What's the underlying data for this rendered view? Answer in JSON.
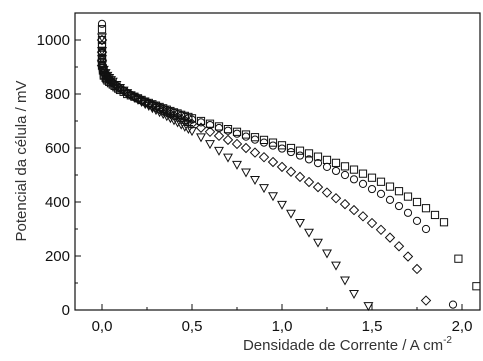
{
  "chart_data": {
    "type": "scatter",
    "title": "",
    "xlabel": "Densidade de Corrente / A cm",
    "xlabel_superscript": "-2",
    "ylabel": "Potencial da célula / mV",
    "xlim": [
      -0.15,
      2.1
    ],
    "ylim": [
      0,
      1100
    ],
    "x_ticks": [
      0.0,
      0.5,
      1.0,
      1.5,
      2.0
    ],
    "x_tick_labels": [
      "0,0",
      "0,5",
      "1,0",
      "1,5",
      "2,0"
    ],
    "y_ticks": [
      0,
      200,
      400,
      600,
      800,
      1000
    ],
    "y_tick_labels": [
      "0",
      "200",
      "400",
      "600",
      "800",
      "1000"
    ],
    "grid": false,
    "legend": "none",
    "marker_color": "#111111",
    "series": [
      {
        "marker": "square",
        "x": [
          0,
          0,
          0,
          0,
          0,
          0,
          0,
          0,
          0.005,
          0.005,
          0.01,
          0.01,
          0.01,
          0.02,
          0.025,
          0.03,
          0.04,
          0.05,
          0.06,
          0.07,
          0.08,
          0.09,
          0.1,
          0.12,
          0.14,
          0.16,
          0.18,
          0.2,
          0.22,
          0.24,
          0.26,
          0.28,
          0.3,
          0.32,
          0.34,
          0.36,
          0.38,
          0.4,
          0.42,
          0.44,
          0.46,
          0.48,
          0.5,
          0.55,
          0.6,
          0.65,
          0.7,
          0.75,
          0.8,
          0.85,
          0.9,
          0.95,
          1.0,
          1.05,
          1.1,
          1.15,
          1.2,
          1.25,
          1.3,
          1.35,
          1.4,
          1.45,
          1.5,
          1.55,
          1.6,
          1.65,
          1.7,
          1.75,
          1.8,
          1.85,
          1.9,
          1.98,
          2.08
        ],
        "y": [
          1040,
          1000,
          980,
          960,
          945,
          930,
          915,
          905,
          895,
          887,
          880,
          872,
          868,
          860,
          855,
          850,
          845,
          840,
          835,
          830,
          825,
          820,
          815,
          808,
          800,
          795,
          790,
          784,
          778,
          772,
          767,
          762,
          757,
          752,
          747,
          742,
          737,
          732,
          728,
          723,
          719,
          715,
          710,
          700,
          690,
          680,
          670,
          660,
          650,
          640,
          630,
          620,
          610,
          600,
          590,
          580,
          568,
          556,
          545,
          532,
          520,
          505,
          490,
          475,
          457,
          440,
          420,
          400,
          377,
          352,
          325,
          190,
          88
        ]
      },
      {
        "marker": "circle",
        "x": [
          0,
          0,
          0,
          0,
          0,
          0,
          0.005,
          0.01,
          0.02,
          0.03,
          0.04,
          0.05,
          0.06,
          0.08,
          0.1,
          0.12,
          0.14,
          0.16,
          0.18,
          0.2,
          0.22,
          0.24,
          0.26,
          0.28,
          0.3,
          0.32,
          0.34,
          0.36,
          0.38,
          0.4,
          0.42,
          0.44,
          0.46,
          0.48,
          0.5,
          0.55,
          0.6,
          0.65,
          0.7,
          0.75,
          0.8,
          0.85,
          0.9,
          0.95,
          1.0,
          1.05,
          1.1,
          1.15,
          1.2,
          1.25,
          1.3,
          1.35,
          1.4,
          1.45,
          1.5,
          1.55,
          1.6,
          1.65,
          1.7,
          1.75,
          1.8,
          1.95
        ],
        "y": [
          1060,
          980,
          950,
          930,
          910,
          898,
          888,
          880,
          868,
          860,
          853,
          846,
          840,
          830,
          820,
          812,
          804,
          797,
          790,
          784,
          778,
          772,
          766,
          761,
          756,
          750,
          745,
          740,
          735,
          730,
          725,
          720,
          715,
          710,
          705,
          695,
          685,
          674,
          664,
          653,
          642,
          631,
          620,
          609,
          598,
          585,
          572,
          558,
          544,
          530,
          515,
          500,
          484,
          467,
          448,
          430,
          408,
          385,
          360,
          330,
          300,
          20
        ]
      },
      {
        "marker": "diamond",
        "x": [
          0,
          0,
          0,
          0,
          0.01,
          0.02,
          0.03,
          0.04,
          0.05,
          0.06,
          0.08,
          0.1,
          0.12,
          0.14,
          0.16,
          0.18,
          0.2,
          0.22,
          0.24,
          0.26,
          0.28,
          0.3,
          0.32,
          0.34,
          0.36,
          0.38,
          0.4,
          0.42,
          0.44,
          0.46,
          0.48,
          0.5,
          0.55,
          0.6,
          0.65,
          0.7,
          0.75,
          0.8,
          0.85,
          0.9,
          0.95,
          1.0,
          1.05,
          1.1,
          1.15,
          1.2,
          1.25,
          1.3,
          1.35,
          1.4,
          1.45,
          1.5,
          1.55,
          1.6,
          1.65,
          1.7,
          1.75,
          1.8
        ],
        "y": [
          1000,
          955,
          925,
          905,
          888,
          875,
          866,
          858,
          851,
          844,
          832,
          822,
          812,
          804,
          796,
          789,
          782,
          775,
          768,
          762,
          756,
          750,
          744,
          738,
          732,
          726,
          720,
          714,
          708,
          702,
          696,
          690,
          675,
          660,
          645,
          630,
          615,
          600,
          583,
          566,
          548,
          530,
          512,
          493,
          474,
          455,
          435,
          414,
          392,
          370,
          347,
          322,
          297,
          268,
          236,
          198,
          152,
          35
        ]
      },
      {
        "marker": "triangle-down",
        "x": [
          0,
          0,
          0,
          0,
          0.01,
          0.02,
          0.03,
          0.04,
          0.05,
          0.06,
          0.08,
          0.1,
          0.12,
          0.14,
          0.16,
          0.18,
          0.2,
          0.22,
          0.24,
          0.26,
          0.28,
          0.3,
          0.32,
          0.34,
          0.36,
          0.38,
          0.4,
          0.42,
          0.44,
          0.46,
          0.48,
          0.5,
          0.55,
          0.6,
          0.65,
          0.7,
          0.75,
          0.8,
          0.85,
          0.9,
          0.95,
          1.0,
          1.05,
          1.1,
          1.15,
          1.2,
          1.25,
          1.3,
          1.35,
          1.4,
          1.48
        ],
        "y": [
          1010,
          960,
          930,
          908,
          890,
          878,
          868,
          860,
          852,
          846,
          834,
          823,
          813,
          804,
          795,
          787,
          779,
          771,
          763,
          756,
          748,
          741,
          733,
          726,
          718,
          711,
          703,
          695,
          687,
          679,
          671,
          663,
          640,
          615,
          590,
          565,
          538,
          510,
          482,
          452,
          422,
          390,
          357,
          323,
          287,
          250,
          210,
          165,
          110,
          60,
          15
        ]
      }
    ]
  }
}
